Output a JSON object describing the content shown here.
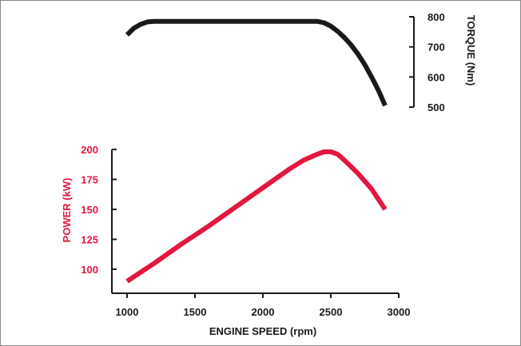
{
  "chart_data": [
    {
      "type": "line",
      "title": "",
      "xlabel": "",
      "ylabel": "TORQUE (Nm)",
      "ylim": [
        500,
        800
      ],
      "yticks": [
        500,
        600,
        700,
        800
      ],
      "xlim": [
        1000,
        3000
      ],
      "grid": false,
      "colors": {
        "series": "#1a1a1a",
        "axis": "#1a1a1a",
        "label": "#1a1a1a"
      },
      "series": [
        {
          "x": [
            1000,
            1050,
            1100,
            1150,
            1200,
            1300,
            1500,
            1800,
            2100,
            2400,
            2450,
            2500,
            2550,
            2600,
            2650,
            2700,
            2750,
            2800,
            2850,
            2900
          ],
          "values": [
            740,
            762,
            775,
            783,
            785,
            785,
            785,
            785,
            785,
            785,
            780,
            769,
            752,
            731,
            706,
            676,
            641,
            600,
            556,
            505
          ]
        }
      ]
    },
    {
      "type": "line",
      "title": "",
      "xlabel": "ENGINE SPEED (rpm)",
      "ylabel": "POWER (kW)",
      "xlim": [
        1000,
        3000
      ],
      "xticks": [
        1000,
        1500,
        2000,
        2500,
        3000
      ],
      "ylim": [
        90,
        200
      ],
      "yticks": [
        100,
        125,
        150,
        175,
        200
      ],
      "grid": false,
      "colors": {
        "series": "#e3163f",
        "axis": "#1a1a1a",
        "label": "#e3163f",
        "xlabel": "#1a1a1a"
      },
      "series": [
        {
          "x": [
            1000,
            1200,
            1400,
            1600,
            1800,
            2000,
            2200,
            2300,
            2400,
            2450,
            2500,
            2550,
            2600,
            2700,
            2800,
            2900
          ],
          "values": [
            90,
            105,
            121,
            136,
            152,
            168,
            184,
            191,
            196,
            198,
            198,
            196,
            191,
            180,
            167,
            150
          ]
        }
      ]
    }
  ]
}
